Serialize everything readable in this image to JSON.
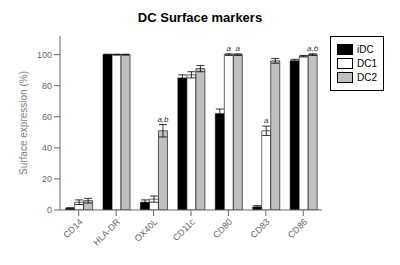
{
  "chart_data": {
    "type": "bar",
    "title": "DC Surface markers",
    "ylabel": "Surface expression (%)",
    "categories": [
      "CD14",
      "HLA-DR",
      "OX40L",
      "CD11c",
      "CD80",
      "CD83",
      "CD86"
    ],
    "series": [
      {
        "name": "iDC",
        "color": "#000000",
        "values": [
          1,
          100,
          5,
          85,
          62,
          2,
          96
        ],
        "errors": [
          0.5,
          0.3,
          1.5,
          2,
          3,
          0.8,
          1
        ]
      },
      {
        "name": "DC1",
        "color": "#ffffff",
        "values": [
          5,
          100,
          7,
          87,
          100,
          51,
          99
        ],
        "errors": [
          1.5,
          0.3,
          2,
          2,
          0.5,
          3,
          0.5
        ]
      },
      {
        "name": "DC2",
        "color": "#c0c0c0",
        "values": [
          6,
          100,
          51,
          91,
          100,
          96,
          100
        ],
        "errors": [
          1.5,
          0.3,
          4,
          2,
          0.5,
          1.5,
          0.5
        ]
      }
    ],
    "annotations": [
      {
        "category": "OX40L",
        "series": "DC2",
        "text": "a,b"
      },
      {
        "category": "CD80",
        "series": "DC1",
        "text": "a"
      },
      {
        "category": "CD80",
        "series": "DC2",
        "text": "a"
      },
      {
        "category": "CD83",
        "series": "DC1",
        "text": "a"
      },
      {
        "category": "CD86",
        "series": "DC2",
        "text": "a,b"
      }
    ],
    "ylim": [
      0,
      112
    ],
    "yticks": [
      0,
      20,
      40,
      60,
      80,
      100
    ],
    "grid": false,
    "legend": "right"
  }
}
